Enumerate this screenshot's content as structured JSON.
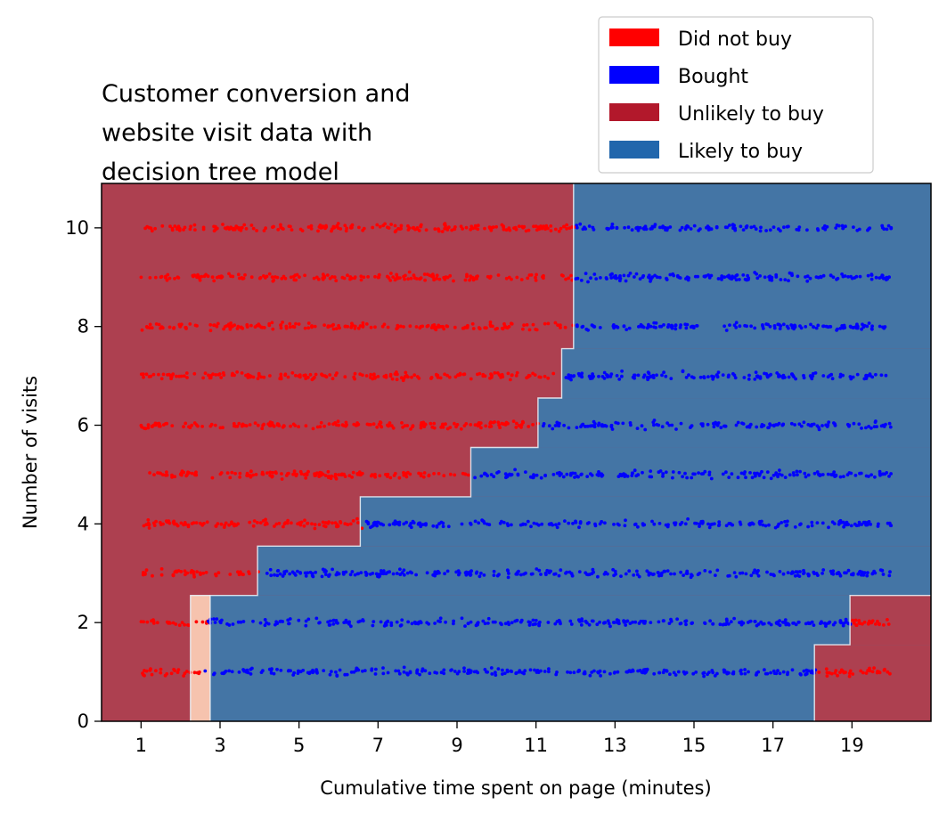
{
  "chart_data": {
    "type": "scatter",
    "title": "Customer conversion and website visit data with decision tree model",
    "title_lines": [
      "Customer conversion and",
      "website visit data with",
      "decision tree model"
    ],
    "xlabel": "Cumulative time spent on page (minutes)",
    "ylabel": "Number of visits",
    "xlim": [
      0.0,
      21.0
    ],
    "ylim": [
      0,
      10.9
    ],
    "xticks": [
      1,
      3,
      5,
      7,
      9,
      11,
      13,
      15,
      17,
      19
    ],
    "yticks": [
      0,
      2,
      4,
      6,
      8,
      10
    ],
    "grid": false,
    "legend_placement": "top-right, above plot",
    "legend": [
      {
        "label": "Did not buy",
        "color": "#ff0000"
      },
      {
        "label": "Bought",
        "color": "#0000ff"
      },
      {
        "label": "Unlikely to buy",
        "color": "#b2182b"
      },
      {
        "label": "Likely to buy",
        "color": "#2166ac"
      }
    ],
    "region_colors": {
      "unlikely": "#ad4050",
      "likely": "#4475a5",
      "uncertain": "#f6c3ae"
    },
    "point_x_range": [
      1.0,
      20.0
    ],
    "point_y_levels": [
      1,
      2,
      3,
      4,
      5,
      6,
      7,
      8,
      9,
      10
    ],
    "point_density_per_row": 320,
    "row_thresholds": [
      {
        "visits": 1,
        "did_not_buy_below": 2.5,
        "did_not_buy_above": 18.1
      },
      {
        "visits": 2,
        "did_not_buy_below": 2.7,
        "did_not_buy_above": 19.0
      },
      {
        "visits": 3,
        "did_not_buy_below": 4.0,
        "did_not_buy_above": null
      },
      {
        "visits": 4,
        "did_not_buy_below": 6.6,
        "did_not_buy_above": null
      },
      {
        "visits": 5,
        "did_not_buy_below": 9.4,
        "did_not_buy_above": null
      },
      {
        "visits": 6,
        "did_not_buy_below": 11.1,
        "did_not_buy_above": null
      },
      {
        "visits": 7,
        "did_not_buy_below": 11.7,
        "did_not_buy_above": null
      },
      {
        "visits": 8,
        "did_not_buy_below": 12.0,
        "did_not_buy_above": null
      },
      {
        "visits": 9,
        "did_not_buy_below": 12.0,
        "did_not_buy_above": null
      },
      {
        "visits": 10,
        "did_not_buy_below": 12.0,
        "did_not_buy_above": null
      }
    ],
    "decision_regions": [
      {
        "class": "likely",
        "x": [
          2.75,
          21.0
        ],
        "y": [
          0,
          2.55
        ]
      },
      {
        "class": "uncertain",
        "x": [
          2.25,
          2.75
        ],
        "y": [
          0,
          2.55
        ]
      },
      {
        "class": "likely",
        "x": [
          3.95,
          21.0
        ],
        "y": [
          2.55,
          3.55
        ]
      },
      {
        "class": "likely",
        "x": [
          6.55,
          21.0
        ],
        "y": [
          3.55,
          4.55
        ]
      },
      {
        "class": "likely",
        "x": [
          9.35,
          21.0
        ],
        "y": [
          4.55,
          5.55
        ]
      },
      {
        "class": "likely",
        "x": [
          11.05,
          21.0
        ],
        "y": [
          5.55,
          6.55
        ]
      },
      {
        "class": "likely",
        "x": [
          11.65,
          21.0
        ],
        "y": [
          6.55,
          7.55
        ]
      },
      {
        "class": "likely",
        "x": [
          11.95,
          21.0
        ],
        "y": [
          7.55,
          10.9
        ]
      },
      {
        "class": "unlikely",
        "x": [
          18.05,
          21.0
        ],
        "y": [
          0,
          1.55
        ]
      },
      {
        "class": "unlikely",
        "x": [
          18.95,
          21.0
        ],
        "y": [
          1.55,
          2.55
        ]
      }
    ],
    "boundary_path": [
      [
        11.95,
        10.9
      ],
      [
        11.95,
        7.55
      ],
      [
        11.65,
        7.55
      ],
      [
        11.65,
        6.55
      ],
      [
        11.05,
        6.55
      ],
      [
        11.05,
        5.55
      ],
      [
        9.35,
        5.55
      ],
      [
        9.35,
        4.55
      ],
      [
        6.55,
        4.55
      ],
      [
        6.55,
        3.55
      ],
      [
        3.95,
        3.55
      ],
      [
        3.95,
        2.55
      ],
      [
        2.75,
        2.55
      ],
      [
        2.75,
        0
      ]
    ],
    "boundary_path_2": [
      [
        2.25,
        0
      ],
      [
        2.25,
        2.55
      ],
      [
        2.75,
        2.55
      ]
    ],
    "boundary_path_3": [
      [
        18.05,
        0
      ],
      [
        18.05,
        1.55
      ],
      [
        18.95,
        1.55
      ],
      [
        18.95,
        2.55
      ],
      [
        21.0,
        2.55
      ]
    ]
  }
}
